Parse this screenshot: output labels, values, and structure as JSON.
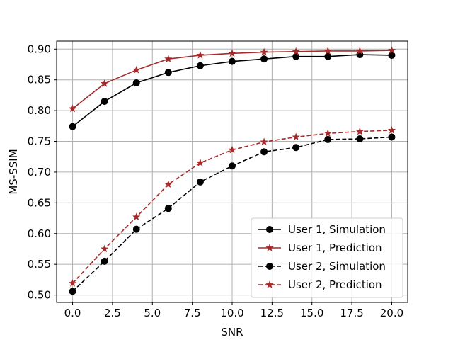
{
  "chart_data": {
    "type": "line",
    "xlabel": "SNR",
    "ylabel": "MS-SSIM",
    "xlim": [
      -1.0,
      21.0
    ],
    "ylim": [
      0.488,
      0.913
    ],
    "xticks": [
      0.0,
      2.5,
      5.0,
      7.5,
      10.0,
      12.5,
      15.0,
      17.5,
      20.0
    ],
    "xtick_labels": [
      "0.0",
      "2.5",
      "5.0",
      "7.5",
      "10.0",
      "12.5",
      "15.0",
      "17.5",
      "20.0"
    ],
    "yticks": [
      0.5,
      0.55,
      0.6,
      0.65,
      0.7,
      0.75,
      0.8,
      0.85,
      0.9
    ],
    "ytick_labels": [
      "0.50",
      "0.55",
      "0.60",
      "0.65",
      "0.70",
      "0.75",
      "0.80",
      "0.85",
      "0.90"
    ],
    "grid": true,
    "legend_position": "bottom-right",
    "x": [
      0,
      2,
      4,
      6,
      8,
      10,
      12,
      14,
      16,
      18,
      20
    ],
    "series": [
      {
        "name": "User 1, Simulation",
        "values": [
          0.774,
          0.815,
          0.845,
          0.862,
          0.873,
          0.88,
          0.884,
          0.888,
          0.888,
          0.891,
          0.89
        ],
        "color": "#000000",
        "linestyle": "solid",
        "marker": "circle"
      },
      {
        "name": "User 1, Prediction",
        "values": [
          0.803,
          0.844,
          0.866,
          0.884,
          0.89,
          0.893,
          0.895,
          0.896,
          0.897,
          0.897,
          0.898
        ],
        "color": "#A52A2A",
        "linestyle": "solid",
        "marker": "star"
      },
      {
        "name": "User 2, Simulation",
        "values": [
          0.506,
          0.555,
          0.607,
          0.641,
          0.684,
          0.71,
          0.733,
          0.74,
          0.753,
          0.754,
          0.757
        ],
        "color": "#000000",
        "linestyle": "dashed",
        "marker": "circle"
      },
      {
        "name": "User 2, Prediction",
        "values": [
          0.519,
          0.575,
          0.627,
          0.68,
          0.715,
          0.736,
          0.749,
          0.757,
          0.763,
          0.766,
          0.768
        ],
        "color": "#A52A2A",
        "linestyle": "dashed",
        "marker": "star"
      }
    ]
  }
}
